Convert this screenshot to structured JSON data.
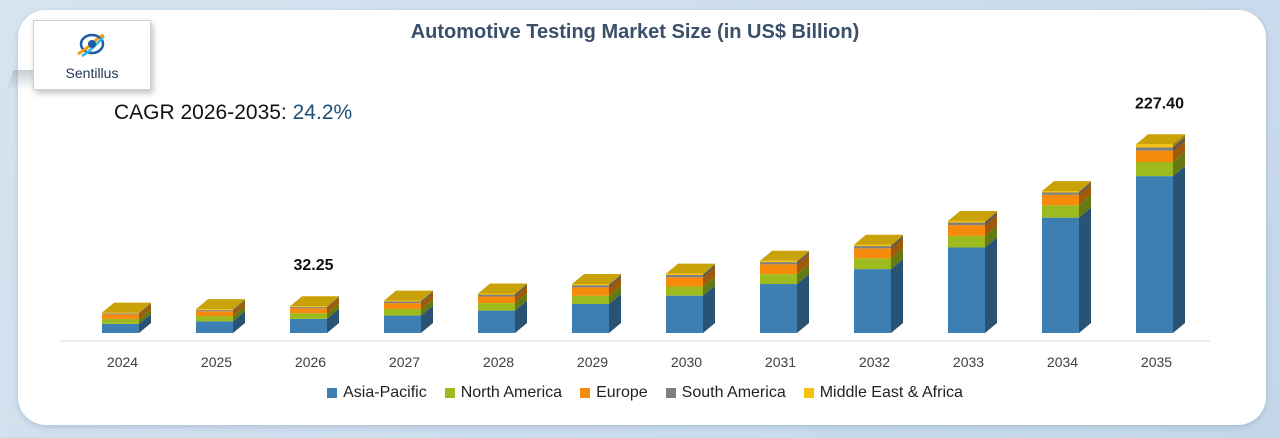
{
  "brand": {
    "name": "Sentillus"
  },
  "header": {
    "title": "Automotive Testing Market Size (in US$ Billion)"
  },
  "cagr": {
    "label": "CAGR 2026-2035:",
    "value": "24.2%"
  },
  "chart_data": {
    "type": "bar",
    "stacked": true,
    "title": "Automotive Testing Market Size (in US$ Billion)",
    "categories": [
      "2024",
      "2025",
      "2026",
      "2027",
      "2028",
      "2029",
      "2030",
      "2031",
      "2032",
      "2033",
      "2034",
      "2035"
    ],
    "totals": [
      24.6,
      28.7,
      32.25,
      39.0,
      47.6,
      59.0,
      71.5,
      87.0,
      106.4,
      135.0,
      171.0,
      227.4
    ],
    "data_labels": [
      {
        "category": "2026",
        "text": "32.25"
      },
      {
        "category": "2035",
        "text": "227.40"
      }
    ],
    "series": [
      {
        "name": "Asia-Pacific",
        "color": "#3d7fb3",
        "values": [
          11.0,
          14.0,
          17.0,
          21.0,
          27.0,
          35.0,
          45.0,
          59.0,
          77.0,
          103.0,
          139.0,
          189.0
        ]
      },
      {
        "name": "North America",
        "color": "#9dbb1e",
        "values": [
          6.0,
          6.4,
          6.8,
          8.0,
          9.0,
          10.0,
          11.0,
          12.0,
          13.0,
          14.0,
          15.0,
          17.0
        ]
      },
      {
        "name": "Europe",
        "color": "#f58a0b",
        "values": [
          5.5,
          5.8,
          6.1,
          7.0,
          8.0,
          10.0,
          11.0,
          11.8,
          12.0,
          13.0,
          12.5,
          13.6
        ]
      },
      {
        "name": "South America",
        "color": "#7f7f7f",
        "values": [
          1.2,
          1.4,
          1.3,
          1.9,
          2.3,
          2.6,
          2.9,
          2.6,
          2.7,
          3.2,
          2.8,
          4.0
        ]
      },
      {
        "name": "Middle East & Africa",
        "color": "#f4c20d",
        "values": [
          0.9,
          1.1,
          1.05,
          1.1,
          1.3,
          1.4,
          1.6,
          1.6,
          1.7,
          1.8,
          1.7,
          3.8
        ]
      }
    ],
    "legend_position": "bottom",
    "grid": false
  }
}
